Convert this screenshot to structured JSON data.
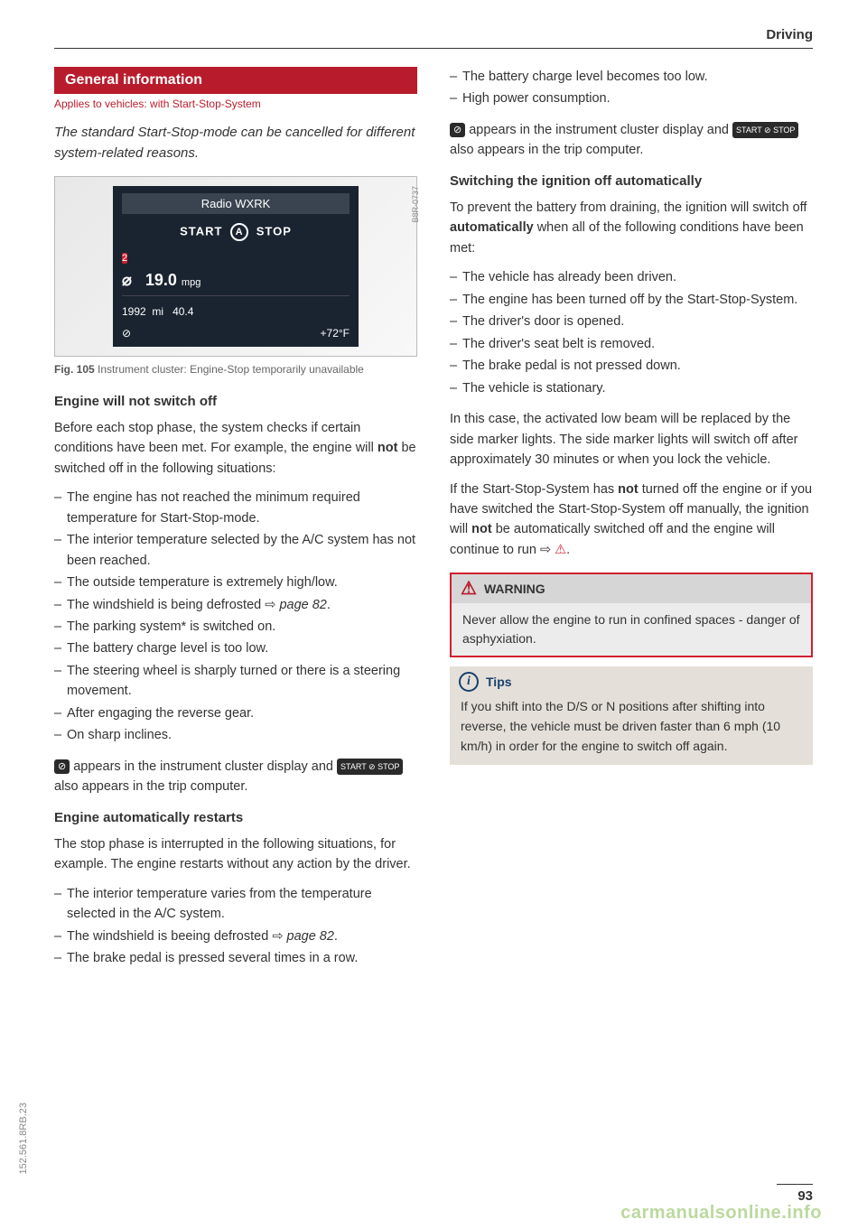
{
  "header": {
    "chapter": "Driving"
  },
  "section": {
    "title": "General information",
    "applies": "Applies to vehicles: with Start-Stop-System",
    "lead": "The standard Start-Stop-mode can be cancelled for different system-related reasons."
  },
  "figure": {
    "code": "B8R-0737",
    "radio": "Radio WXRK",
    "start": "START",
    "stop": "STOP",
    "badge": "2",
    "null_icon": "⌀",
    "mpg_value": "19.0",
    "mpg_unit": "mpg",
    "odo": "1992",
    "odo_unit": "mi",
    "trip": "40.4",
    "temp": "+72°F",
    "caption_bold": "Fig. 105",
    "caption": "Instrument cluster: Engine-Stop temporarily unavailable"
  },
  "left": {
    "h1": "Engine will not switch off",
    "p1a": "Before each stop phase, the system checks if certain conditions have been met. For example, the engine will ",
    "p1b": "not",
    "p1c": " be switched off in the following situations:",
    "list1": [
      "The engine has not reached the minimum required temperature for Start-Stop-mode.",
      "The interior temperature selected by the A/C system has not been reached.",
      "The outside temperature is extremely high/low.",
      "The windshield is being defrosted ",
      "The parking system* is switched on.",
      "The battery charge level is too low.",
      "The steering wheel is sharply turned or there is a steering movement.",
      "After engaging the reverse gear.",
      "On sharp inclines."
    ],
    "pageref1": "page 82",
    "p2a": " appears in the instrument cluster display and ",
    "p2b": " also appears in the trip computer.",
    "h2": "Engine automatically restarts",
    "p3": "The stop phase is interrupted in the following situations, for example. The engine restarts without any action by the driver.",
    "list2": [
      "The interior temperature varies from the temperature selected in the A/C system.",
      "The windshield is beeing defrosted ",
      "The brake pedal is pressed several times in a row."
    ],
    "pageref2": "page 82"
  },
  "right": {
    "list_top": [
      "The battery charge level becomes too low.",
      "High power consumption."
    ],
    "p2a": " appears in the instrument cluster display and ",
    "p2b": " also appears in the trip computer.",
    "h1": "Switching the ignition off automatically",
    "p1a": "To prevent the battery from draining, the ignition will switch off ",
    "p1b": "automatically",
    "p1c": " when all of the following conditions have been met:",
    "list1": [
      "The vehicle has already been driven.",
      "The engine has been turned off by the Start-Stop-System.",
      "The driver's door is opened.",
      "The driver's seat belt is removed.",
      "The brake pedal is not pressed down.",
      "The vehicle is stationary."
    ],
    "p2": "In this case, the activated low beam will be replaced by the side marker lights. The side marker lights will switch off after approximately 30 minutes or when you lock the vehicle.",
    "p3a": "If the Start-Stop-System has ",
    "p3b": "not",
    "p3c": " turned off the engine or if you have switched the Start-Stop-System off manually, the ignition will ",
    "p3d": "not",
    "p3e": " be automatically switched off and the engine will continue to run ⇨ ",
    "warn_tri": "⚠"
  },
  "warning": {
    "title": "WARNING",
    "body": "Never allow the engine to run in confined spaces - danger of asphyxiation."
  },
  "tips": {
    "title": "Tips",
    "body": "If you shift into the D/S or N positions after shifting into reverse, the vehicle must be driven faster than 6 mph (10 km/h) in order for the engine to switch off again."
  },
  "icons": {
    "stop_icon": "⊘",
    "start_stop_label": "START ⊘ STOP"
  },
  "meta": {
    "side_code": "152.561.8RB.23",
    "page_number": "93",
    "watermark": "carmanualsonline.info"
  },
  "colors": {
    "accent_red": "#b81c2c",
    "cluster_bg": "#1a2430",
    "warn_border": "#d02030",
    "tips_bg": "#e4e0d9",
    "tips_accent": "#17416b"
  }
}
